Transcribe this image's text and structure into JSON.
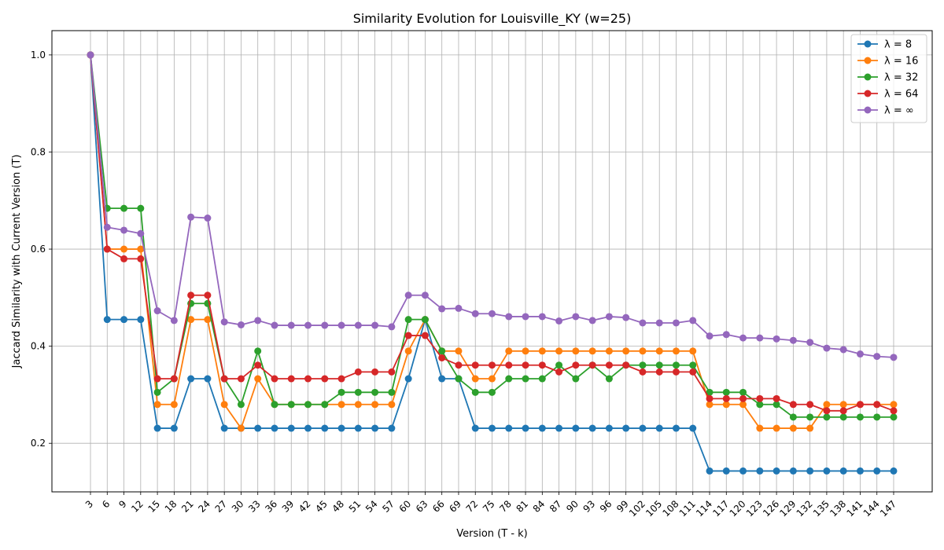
{
  "chart_data": {
    "type": "line",
    "title": "Similarity Evolution for Louisville_KY (w=25)",
    "xlabel": "Version (T - k)",
    "ylabel": "Jaccard Similarity with Current Version (T)",
    "ylim": [
      0.1,
      1.05
    ],
    "yticks": [
      0.2,
      0.4,
      0.6,
      0.8,
      1.0
    ],
    "grid": true,
    "legend_position": "top-right",
    "x": [
      3,
      6,
      9,
      12,
      15,
      18,
      21,
      24,
      27,
      30,
      33,
      36,
      39,
      42,
      45,
      48,
      51,
      54,
      57,
      60,
      63,
      66,
      69,
      72,
      75,
      78,
      81,
      84,
      87,
      90,
      93,
      96,
      99,
      102,
      105,
      108,
      111,
      114,
      117,
      120,
      123,
      126,
      129,
      132,
      135,
      138,
      141,
      144,
      147
    ],
    "series": [
      {
        "name": "λ = 8",
        "color": "#1f77b4",
        "values": [
          1.0,
          0.455,
          0.455,
          0.455,
          0.231,
          0.231,
          0.333,
          0.333,
          0.231,
          0.231,
          0.231,
          0.231,
          0.231,
          0.231,
          0.231,
          0.231,
          0.231,
          0.231,
          0.231,
          0.333,
          0.455,
          0.333,
          0.333,
          0.231,
          0.231,
          0.231,
          0.231,
          0.231,
          0.231,
          0.231,
          0.231,
          0.231,
          0.231,
          0.231,
          0.231,
          0.231,
          0.231,
          0.143,
          0.143,
          0.143,
          0.143,
          0.143,
          0.143,
          0.143,
          0.143,
          0.143,
          0.143,
          0.143,
          0.143
        ]
      },
      {
        "name": "λ = 16",
        "color": "#ff7f0e",
        "values": [
          1.0,
          0.6,
          0.6,
          0.6,
          0.28,
          0.28,
          0.455,
          0.455,
          0.28,
          0.231,
          0.333,
          0.28,
          0.28,
          0.28,
          0.28,
          0.28,
          0.28,
          0.28,
          0.28,
          0.39,
          0.455,
          0.39,
          0.39,
          0.333,
          0.333,
          0.39,
          0.39,
          0.39,
          0.39,
          0.39,
          0.39,
          0.39,
          0.39,
          0.39,
          0.39,
          0.39,
          0.39,
          0.28,
          0.28,
          0.28,
          0.231,
          0.231,
          0.231,
          0.231,
          0.28,
          0.28,
          0.28,
          0.28,
          0.28
        ]
      },
      {
        "name": "λ = 32",
        "color": "#2ca02c",
        "values": [
          1.0,
          0.684,
          0.684,
          0.684,
          0.305,
          0.333,
          0.488,
          0.488,
          0.333,
          0.28,
          0.39,
          0.28,
          0.28,
          0.28,
          0.28,
          0.305,
          0.305,
          0.305,
          0.305,
          0.455,
          0.455,
          0.39,
          0.333,
          0.305,
          0.305,
          0.333,
          0.333,
          0.333,
          0.361,
          0.333,
          0.361,
          0.333,
          0.361,
          0.361,
          0.361,
          0.361,
          0.361,
          0.305,
          0.305,
          0.305,
          0.28,
          0.28,
          0.254,
          0.254,
          0.254,
          0.254,
          0.254,
          0.254,
          0.254
        ]
      },
      {
        "name": "λ = 64",
        "color": "#d62728",
        "values": [
          1.0,
          0.6,
          0.58,
          0.58,
          0.333,
          0.333,
          0.505,
          0.505,
          0.333,
          0.333,
          0.361,
          0.333,
          0.333,
          0.333,
          0.333,
          0.333,
          0.347,
          0.347,
          0.347,
          0.422,
          0.422,
          0.376,
          0.361,
          0.361,
          0.361,
          0.361,
          0.361,
          0.361,
          0.347,
          0.361,
          0.361,
          0.361,
          0.361,
          0.347,
          0.347,
          0.347,
          0.347,
          0.292,
          0.292,
          0.292,
          0.292,
          0.292,
          0.28,
          0.28,
          0.267,
          0.267,
          0.28,
          0.28,
          0.267
        ]
      },
      {
        "name": "λ = ∞",
        "color": "#9467bd",
        "values": [
          1.0,
          0.645,
          0.639,
          0.632,
          0.473,
          0.453,
          0.666,
          0.664,
          0.45,
          0.444,
          0.453,
          0.443,
          0.443,
          0.443,
          0.443,
          0.443,
          0.443,
          0.443,
          0.44,
          0.505,
          0.505,
          0.477,
          0.478,
          0.467,
          0.467,
          0.461,
          0.461,
          0.461,
          0.452,
          0.461,
          0.453,
          0.461,
          0.459,
          0.448,
          0.448,
          0.448,
          0.453,
          0.421,
          0.424,
          0.417,
          0.417,
          0.415,
          0.412,
          0.408,
          0.396,
          0.393,
          0.384,
          0.379,
          0.377
        ]
      }
    ]
  }
}
